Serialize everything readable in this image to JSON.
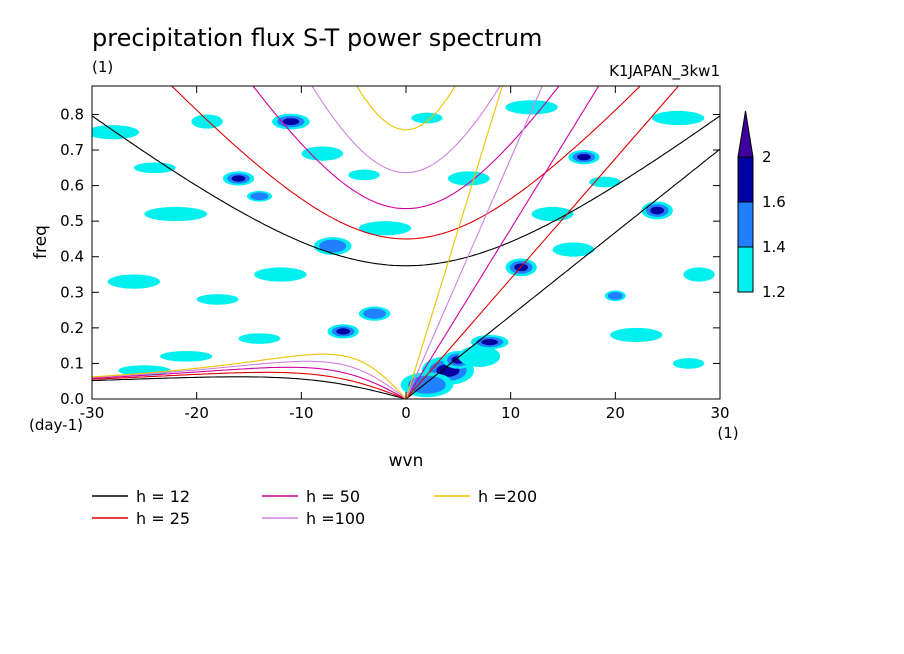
{
  "chart_data": {
    "type": "contour",
    "title": "precipitation flux S-T power spectrum",
    "subtitle_left": "(1)",
    "subtitle_right": "K1JAPAN_3kw1",
    "xlabel": "wvn",
    "ylabel": "freq",
    "x_unit": "(1)",
    "y_unit": "(day-1)",
    "xlim": [
      -30,
      30
    ],
    "ylim": [
      0,
      0.88
    ],
    "xticks": [
      -30,
      -20,
      -10,
      0,
      10,
      20,
      30
    ],
    "yticks": [
      0.0,
      0.1,
      0.2,
      0.3,
      0.4,
      0.5,
      0.6,
      0.7,
      0.8
    ],
    "colorbar": {
      "levels": [
        1.2,
        1.4,
        1.6,
        2
      ],
      "colors": [
        "#00f0f0",
        "#2080ff",
        "#0000a0",
        "#4000a0"
      ]
    },
    "dispersion_curves": [
      {
        "name": "h = 12",
        "h": 12,
        "color": "#000000"
      },
      {
        "name": "h = 25",
        "h": 25,
        "color": "#e00000"
      },
      {
        "name": "h = 50",
        "h": 50,
        "color": "#d000a0"
      },
      {
        "name": "h =100",
        "h": 100,
        "color": "#d080e0"
      },
      {
        "name": "h =200",
        "h": 200,
        "color": "#f0c000"
      }
    ],
    "blobs": [
      {
        "x": 4,
        "y": 0.08,
        "rx": 2.5,
        "ry": 0.04,
        "level": 3
      },
      {
        "x": 5,
        "y": 0.11,
        "rx": 1.5,
        "ry": 0.025,
        "level": 4
      },
      {
        "x": 3,
        "y": 0.05,
        "rx": 1.2,
        "ry": 0.02,
        "level": 4
      },
      {
        "x": 2,
        "y": 0.04,
        "rx": 2.5,
        "ry": 0.035,
        "level": 2
      },
      {
        "x": 7,
        "y": 0.12,
        "rx": 2.0,
        "ry": 0.03,
        "level": 1
      },
      {
        "x": -19,
        "y": 0.78,
        "rx": 1.5,
        "ry": 0.02,
        "level": 1
      },
      {
        "x": -11,
        "y": 0.78,
        "rx": 1.8,
        "ry": 0.022,
        "level": 3
      },
      {
        "x": -16,
        "y": 0.62,
        "rx": 1.5,
        "ry": 0.02,
        "level": 3
      },
      {
        "x": -14,
        "y": 0.57,
        "rx": 1.2,
        "ry": 0.015,
        "level": 2
      },
      {
        "x": -7,
        "y": 0.43,
        "rx": 1.8,
        "ry": 0.025,
        "level": 2
      },
      {
        "x": 11,
        "y": 0.37,
        "rx": 1.5,
        "ry": 0.025,
        "level": 3
      },
      {
        "x": 17,
        "y": 0.68,
        "rx": 1.5,
        "ry": 0.02,
        "level": 3
      },
      {
        "x": 24,
        "y": 0.53,
        "rx": 1.5,
        "ry": 0.025,
        "level": 3
      },
      {
        "x": 20,
        "y": 0.29,
        "rx": 1.0,
        "ry": 0.015,
        "level": 2
      },
      {
        "x": -3,
        "y": 0.24,
        "rx": 1.5,
        "ry": 0.02,
        "level": 2
      },
      {
        "x": -6,
        "y": 0.19,
        "rx": 1.5,
        "ry": 0.02,
        "level": 3
      },
      {
        "x": 8,
        "y": 0.16,
        "rx": 1.8,
        "ry": 0.02,
        "level": 3
      },
      {
        "x": -28,
        "y": 0.75,
        "rx": 2.5,
        "ry": 0.02,
        "level": 1
      },
      {
        "x": -24,
        "y": 0.65,
        "rx": 2.0,
        "ry": 0.015,
        "level": 1
      },
      {
        "x": -22,
        "y": 0.52,
        "rx": 3.0,
        "ry": 0.02,
        "level": 1
      },
      {
        "x": -26,
        "y": 0.33,
        "rx": 2.5,
        "ry": 0.02,
        "level": 1
      },
      {
        "x": -18,
        "y": 0.28,
        "rx": 2.0,
        "ry": 0.015,
        "level": 1
      },
      {
        "x": -12,
        "y": 0.35,
        "rx": 2.5,
        "ry": 0.02,
        "level": 1
      },
      {
        "x": -2,
        "y": 0.48,
        "rx": 2.5,
        "ry": 0.02,
        "level": 1
      },
      {
        "x": 6,
        "y": 0.62,
        "rx": 2.0,
        "ry": 0.02,
        "level": 1
      },
      {
        "x": 12,
        "y": 0.82,
        "rx": 2.5,
        "ry": 0.02,
        "level": 1
      },
      {
        "x": 26,
        "y": 0.79,
        "rx": 2.5,
        "ry": 0.02,
        "level": 1
      },
      {
        "x": 22,
        "y": 0.18,
        "rx": 2.5,
        "ry": 0.02,
        "level": 1
      },
      {
        "x": -21,
        "y": 0.12,
        "rx": 2.5,
        "ry": 0.015,
        "level": 1
      },
      {
        "x": -14,
        "y": 0.17,
        "rx": 2.0,
        "ry": 0.015,
        "level": 1
      },
      {
        "x": 16,
        "y": 0.42,
        "rx": 2.0,
        "ry": 0.02,
        "level": 1
      },
      {
        "x": 28,
        "y": 0.35,
        "rx": 1.5,
        "ry": 0.02,
        "level": 1
      },
      {
        "x": -8,
        "y": 0.69,
        "rx": 2.0,
        "ry": 0.02,
        "level": 1
      },
      {
        "x": 2,
        "y": 0.79,
        "rx": 1.5,
        "ry": 0.015,
        "level": 1
      },
      {
        "x": 14,
        "y": 0.52,
        "rx": 2.0,
        "ry": 0.02,
        "level": 1
      },
      {
        "x": -25,
        "y": 0.08,
        "rx": 2.5,
        "ry": 0.015,
        "level": 1
      },
      {
        "x": 27,
        "y": 0.1,
        "rx": 1.5,
        "ry": 0.015,
        "level": 1
      },
      {
        "x": -4,
        "y": 0.63,
        "rx": 1.5,
        "ry": 0.015,
        "level": 1
      },
      {
        "x": 19,
        "y": 0.61,
        "rx": 1.5,
        "ry": 0.015,
        "level": 1
      }
    ]
  }
}
